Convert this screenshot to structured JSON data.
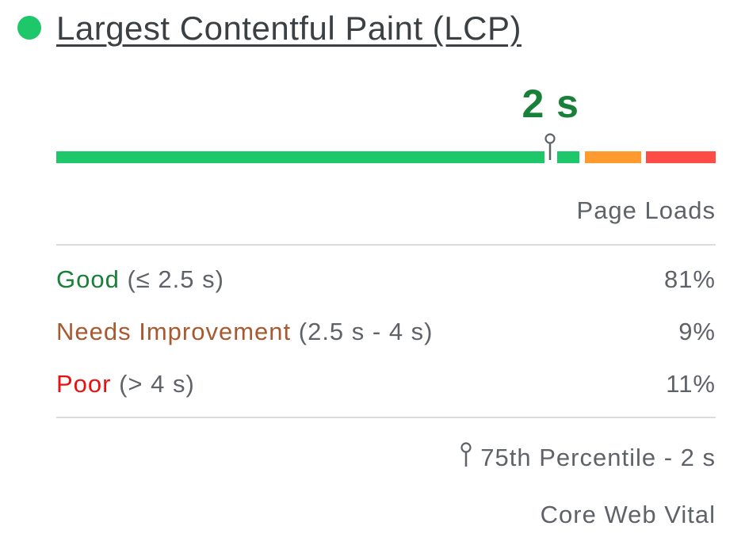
{
  "metric": {
    "title": "Largest Contentful Paint (LCP)",
    "status": "good",
    "value": "2 s",
    "value_seconds": 2,
    "colors": {
      "good": "#1dc76a",
      "good_text": "#188038",
      "needs_improvement": "#ff9a2e",
      "needs_improvement_text": "#a9592f",
      "poor": "#ff4b45",
      "poor_text": "#eb1010"
    }
  },
  "distribution": {
    "header": "Page Loads",
    "rows": [
      {
        "label": "Good",
        "range": "(≤ 2.5 s)",
        "percent": "81%"
      },
      {
        "label": "Needs Improvement",
        "range": "(2.5 s - 4 s)",
        "percent": "9%"
      },
      {
        "label": "Poor",
        "range": "(> 4 s)",
        "percent": "11%"
      }
    ]
  },
  "footer": {
    "percentile": "75th Percentile - 2 s",
    "percentile_icon": "pin-icon",
    "core_web_vital": "Core Web Vital"
  }
}
